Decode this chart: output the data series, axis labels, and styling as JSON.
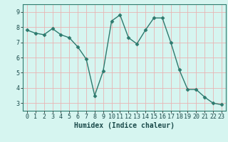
{
  "x": [
    0,
    1,
    2,
    3,
    4,
    5,
    6,
    7,
    8,
    9,
    10,
    11,
    12,
    13,
    14,
    15,
    16,
    17,
    18,
    19,
    20,
    21,
    22,
    23
  ],
  "y": [
    7.8,
    7.6,
    7.5,
    7.9,
    7.5,
    7.3,
    6.7,
    5.9,
    3.5,
    5.1,
    8.4,
    8.8,
    7.3,
    6.9,
    7.8,
    8.6,
    8.6,
    7.0,
    5.2,
    3.9,
    3.9,
    3.4,
    3.0,
    2.9
  ],
  "line_color": "#2d7a6e",
  "marker": "D",
  "marker_color": "#2d7a6e",
  "bg_color": "#d6f5f0",
  "grid_color": "#e8b4b4",
  "xlabel": "Humidex (Indice chaleur)",
  "ylim": [
    2.5,
    9.5
  ],
  "xlim": [
    -0.5,
    23.5
  ],
  "yticks": [
    3,
    4,
    5,
    6,
    7,
    8,
    9
  ],
  "xticks": [
    0,
    1,
    2,
    3,
    4,
    5,
    6,
    7,
    8,
    9,
    10,
    11,
    12,
    13,
    14,
    15,
    16,
    17,
    18,
    19,
    20,
    21,
    22,
    23
  ],
  "tick_fontsize": 6,
  "xlabel_fontsize": 7,
  "linewidth": 1.0,
  "markersize": 2.5
}
